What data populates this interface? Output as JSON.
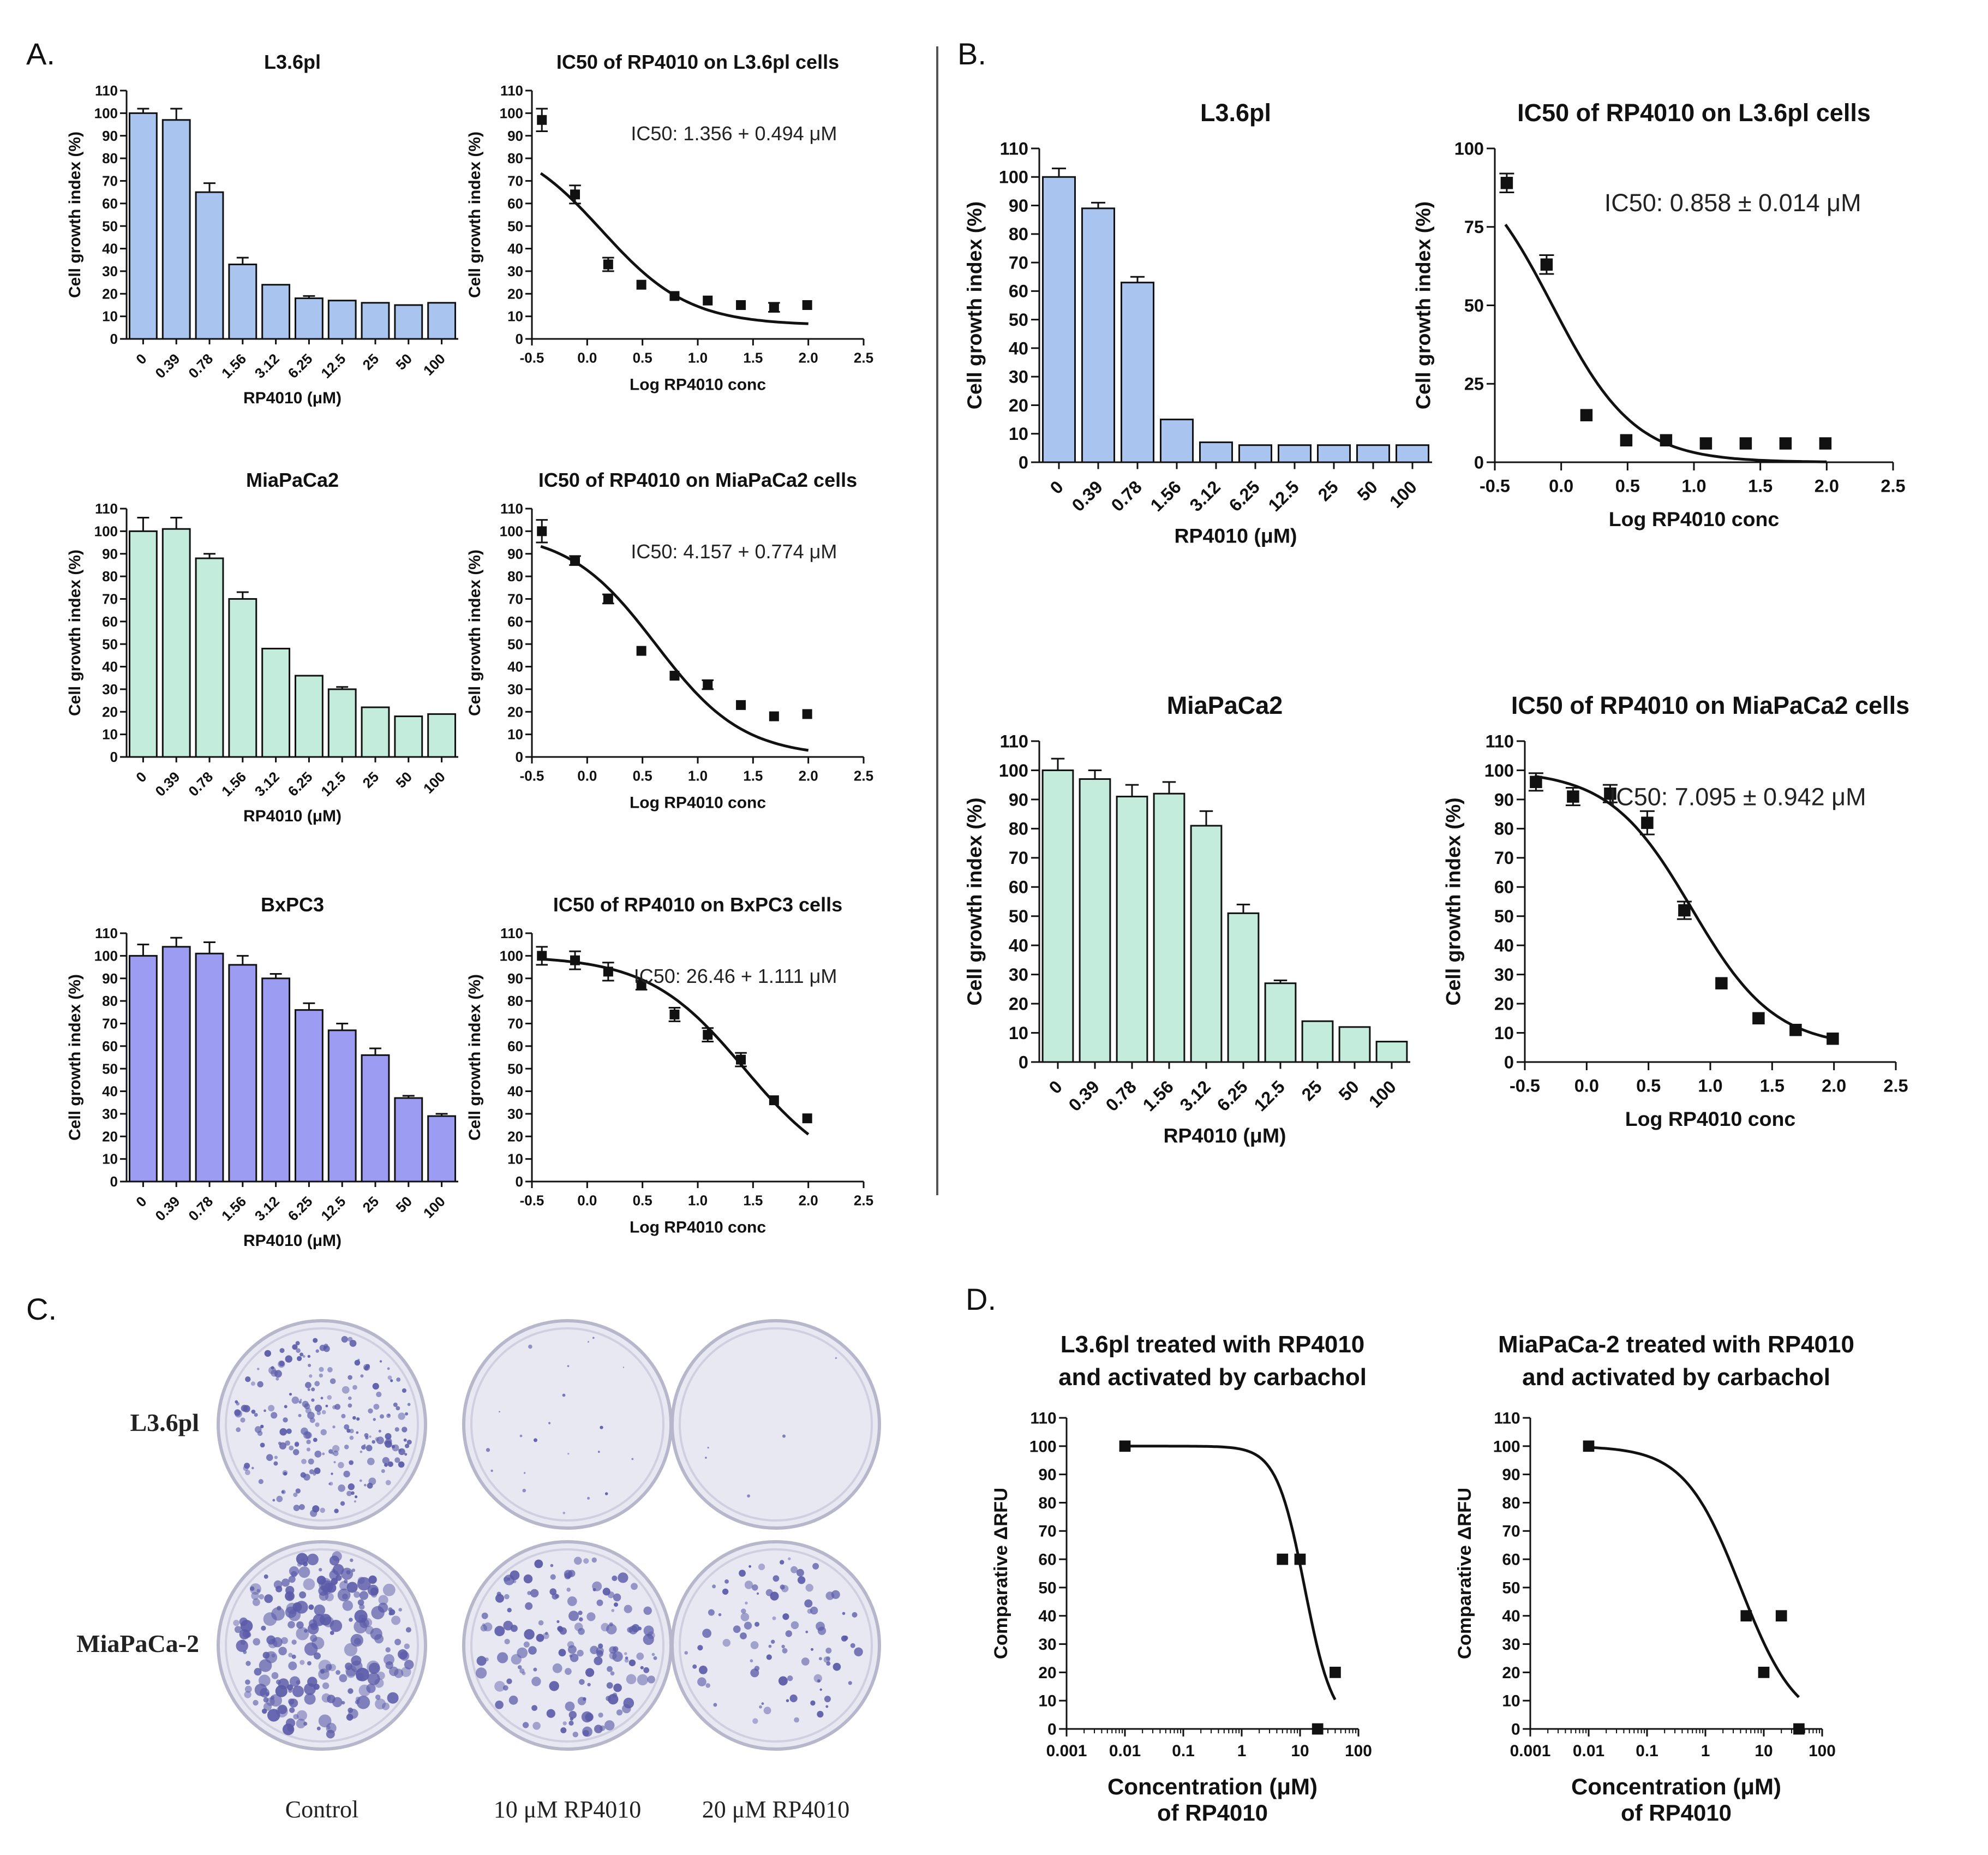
{
  "colors": {
    "blue": "#a9c4ef",
    "mint": "#c4ecdd",
    "purple": "#9d9cf3",
    "dish_stain": "#5a5aa8",
    "dish_bg": "#e8e8f2"
  },
  "panels": {
    "A": "A.",
    "B": "B.",
    "C": "C.",
    "D": "D."
  },
  "chart_data": [
    {
      "id": "A1",
      "panel": "A",
      "type": "bar",
      "title": "L3.6pl",
      "ylabel": "Cell growth index (%)",
      "xlabel": "RP4010 (μM)",
      "categories": [
        "0",
        "0.39",
        "0.78",
        "1.56",
        "3.12",
        "6.25",
        "12.5",
        "25",
        "50",
        "100"
      ],
      "values": [
        100,
        97,
        65,
        33,
        24,
        18,
        17,
        16,
        15,
        16
      ],
      "errors": [
        2,
        5,
        4,
        3,
        0,
        1,
        0,
        0,
        0,
        0
      ],
      "ylim": [
        0,
        110
      ],
      "yticks": [
        "0",
        "10",
        "20",
        "30",
        "40",
        "50",
        "60",
        "70",
        "80",
        "90",
        "100",
        "110"
      ],
      "color": "blue"
    },
    {
      "id": "A2",
      "panel": "A",
      "type": "scatter",
      "title": "IC50 of RP4010 on L3.6pl cells",
      "ylabel": "Cell growth index (%)",
      "xlabel": "Log RP4010 conc",
      "annotation": "IC50: 1.356 + 0.494 μM",
      "ic50": 1.356,
      "top": 90,
      "bottom": 6,
      "hill": 1.1,
      "x": [
        -0.41,
        -0.11,
        0.19,
        0.49,
        0.79,
        1.09,
        1.39,
        1.69,
        1.99
      ],
      "y": [
        97,
        64,
        33,
        24,
        19,
        17,
        15,
        14,
        15
      ],
      "errors": [
        5,
        4,
        3,
        0,
        0,
        0,
        0,
        2,
        0
      ],
      "xlim": [
        -0.5,
        2.5
      ],
      "ylim": [
        0,
        110
      ],
      "xticks": [
        "-0.5",
        "0.0",
        "0.5",
        "1.0",
        "1.5",
        "2.0",
        "2.5"
      ],
      "yticks": [
        "0",
        "10",
        "20",
        "30",
        "40",
        "50",
        "60",
        "70",
        "80",
        "90",
        "100",
        "110"
      ]
    },
    {
      "id": "A3",
      "panel": "A",
      "type": "bar",
      "title": "MiaPaCa2",
      "ylabel": "Cell growth index (%)",
      "xlabel": "RP4010 (μM)",
      "categories": [
        "0",
        "0.39",
        "0.78",
        "1.56",
        "3.12",
        "6.25",
        "12.5",
        "25",
        "50",
        "100"
      ],
      "values": [
        100,
        101,
        88,
        70,
        48,
        36,
        30,
        22,
        18,
        19
      ],
      "errors": [
        6,
        5,
        2,
        3,
        0,
        0,
        1,
        0,
        0,
        0
      ],
      "ylim": [
        0,
        110
      ],
      "yticks": [
        "0",
        "10",
        "20",
        "30",
        "40",
        "50",
        "60",
        "70",
        "80",
        "90",
        "100",
        "110"
      ],
      "color": "mint"
    },
    {
      "id": "A4",
      "panel": "A",
      "type": "scatter",
      "title": "IC50 of RP4010 on MiaPaCa2 cells",
      "ylabel": "Cell growth index (%)",
      "xlabel": "Log RP4010 conc",
      "annotation": "IC50: 4.157 + 0.774 μM",
      "ic50": 4.157,
      "top": 100,
      "bottom": 0,
      "hill": 1.1,
      "x": [
        -0.41,
        -0.11,
        0.19,
        0.49,
        0.79,
        1.09,
        1.39,
        1.69,
        1.99
      ],
      "y": [
        100,
        87,
        70,
        47,
        36,
        32,
        23,
        18,
        19
      ],
      "errors": [
        5,
        2,
        2,
        0,
        0,
        2,
        0,
        0,
        0
      ],
      "xlim": [
        -0.5,
        2.5
      ],
      "ylim": [
        0,
        110
      ],
      "xticks": [
        "-0.5",
        "0.0",
        "0.5",
        "1.0",
        "1.5",
        "2.0",
        "2.5"
      ],
      "yticks": [
        "0",
        "10",
        "20",
        "30",
        "40",
        "50",
        "60",
        "70",
        "80",
        "90",
        "100",
        "110"
      ]
    },
    {
      "id": "A5",
      "panel": "A",
      "type": "bar",
      "title": "BxPC3",
      "ylabel": "Cell growth index (%)",
      "xlabel": "RP4010 (μM)",
      "categories": [
        "0",
        "0.39",
        "0.78",
        "1.56",
        "3.12",
        "6.25",
        "12.5",
        "25",
        "50",
        "100"
      ],
      "values": [
        100,
        104,
        101,
        96,
        90,
        76,
        67,
        56,
        37,
        29
      ],
      "errors": [
        5,
        4,
        5,
        4,
        2,
        3,
        3,
        3,
        1,
        1
      ],
      "ylim": [
        0,
        110
      ],
      "yticks": [
        "0",
        "10",
        "20",
        "30",
        "40",
        "50",
        "60",
        "70",
        "80",
        "90",
        "100",
        "110"
      ],
      "color": "purple"
    },
    {
      "id": "A6",
      "panel": "A",
      "type": "scatter",
      "title": "IC50 of RP4010 on BxPC3 cells",
      "ylabel": "Cell growth index (%)",
      "xlabel": "Log RP4010 conc",
      "annotation": "IC50: 26.46 + 1.111 μM",
      "ic50": 26.46,
      "top": 100,
      "bottom": 0,
      "hill": 1.0,
      "x": [
        -0.41,
        -0.11,
        0.19,
        0.49,
        0.79,
        1.09,
        1.39,
        1.69,
        1.99
      ],
      "y": [
        100,
        98,
        93,
        87,
        74,
        65,
        54,
        36,
        28
      ],
      "errors": [
        4,
        4,
        4,
        2,
        3,
        3,
        3,
        0,
        0
      ],
      "xlim": [
        -0.5,
        2.5
      ],
      "ylim": [
        0,
        110
      ],
      "xticks": [
        "-0.5",
        "0.0",
        "0.5",
        "1.0",
        "1.5",
        "2.0",
        "2.5"
      ],
      "yticks": [
        "0",
        "10",
        "20",
        "30",
        "40",
        "50",
        "60",
        "70",
        "80",
        "90",
        "100",
        "110"
      ]
    },
    {
      "id": "B1",
      "panel": "B",
      "type": "bar",
      "title": "L3.6pl",
      "ylabel": "Cell growth index (%)",
      "xlabel": "RP4010 (μM)",
      "categories": [
        "0",
        "0.39",
        "0.78",
        "1.56",
        "3.12",
        "6.25",
        "12.5",
        "25",
        "50",
        "100"
      ],
      "values": [
        100,
        89,
        63,
        15,
        7,
        6,
        6,
        6,
        6,
        6
      ],
      "errors": [
        3,
        2,
        2,
        0,
        0,
        0,
        0,
        0,
        0,
        0
      ],
      "ylim": [
        0,
        110
      ],
      "yticks": [
        "0",
        "10",
        "20",
        "30",
        "40",
        "50",
        "60",
        "70",
        "80",
        "90",
        "100",
        "110"
      ],
      "color": "blue"
    },
    {
      "id": "B2",
      "panel": "B",
      "type": "scatter",
      "title": "IC50 of RP4010 on L3.6pl cells",
      "ylabel": "Cell growth index (%)",
      "xlabel": "Log RP4010 conc",
      "annotation": "IC50: 0.858 ± 0.014 μM",
      "ic50": 0.858,
      "top": 100,
      "bottom": 0,
      "hill": 1.4,
      "x": [
        -0.41,
        -0.11,
        0.19,
        0.49,
        0.79,
        1.09,
        1.39,
        1.69,
        1.99
      ],
      "y": [
        89,
        63,
        15,
        7,
        7,
        6,
        6,
        6,
        6
      ],
      "errors": [
        3,
        3,
        0,
        0,
        0,
        0,
        0,
        0,
        0
      ],
      "xlim": [
        -0.5,
        2.5
      ],
      "ylim": [
        0,
        100
      ],
      "xticks": [
        "-0.5",
        "0.0",
        "0.5",
        "1.0",
        "1.5",
        "2.0",
        "2.5"
      ],
      "yticks": [
        "0",
        "25",
        "50",
        "75",
        "100"
      ]
    },
    {
      "id": "B3",
      "panel": "B",
      "type": "bar",
      "title": "MiaPaCa2",
      "ylabel": "Cell growth index (%)",
      "xlabel": "RP4010 (μM)",
      "categories": [
        "0",
        "0.39",
        "0.78",
        "1.56",
        "3.12",
        "6.25",
        "12.5",
        "25",
        "50",
        "100"
      ],
      "values": [
        100,
        97,
        91,
        92,
        81,
        51,
        27,
        14,
        12,
        7
      ],
      "errors": [
        4,
        3,
        4,
        4,
        5,
        3,
        1,
        0,
        0,
        0
      ],
      "ylim": [
        0,
        110
      ],
      "yticks": [
        "0",
        "10",
        "20",
        "30",
        "40",
        "50",
        "60",
        "70",
        "80",
        "90",
        "100",
        "110"
      ],
      "color": "mint"
    },
    {
      "id": "B4",
      "panel": "B",
      "type": "scatter",
      "title": "IC50 of RP4010 on MiaPaCa2 cells",
      "ylabel": "Cell growth index (%)",
      "xlabel": "Log RP4010 conc",
      "annotation": "IC50: 7.095 ± 0.942 μM",
      "ic50": 7.095,
      "top": 100,
      "bottom": 5,
      "hill": 1.3,
      "x": [
        -0.41,
        -0.11,
        0.19,
        0.49,
        0.79,
        1.09,
        1.39,
        1.69,
        1.99
      ],
      "y": [
        96,
        91,
        92,
        82,
        52,
        27,
        15,
        11,
        8
      ],
      "errors": [
        3,
        3,
        3,
        4,
        3,
        0,
        0,
        0,
        0
      ],
      "xlim": [
        -0.5,
        2.5
      ],
      "ylim": [
        0,
        110
      ],
      "xticks": [
        "-0.5",
        "0.0",
        "0.5",
        "1.0",
        "1.5",
        "2.0",
        "2.5"
      ],
      "yticks": [
        "0",
        "10",
        "20",
        "30",
        "40",
        "50",
        "60",
        "70",
        "80",
        "90",
        "100",
        "110"
      ]
    },
    {
      "id": "D1",
      "panel": "D",
      "type": "scatter",
      "title": [
        "L3.6pl treated with RP4010",
        "and activated by carbachol"
      ],
      "ylabel": "Comparative ΔRFU",
      "xlabel": [
        "Concentration (μM)",
        "of RP4010"
      ],
      "logx": true,
      "ic50": 12,
      "top": 100,
      "bottom": 0,
      "hill": 1.8,
      "curve_from": -2,
      "curve_to": 1.6,
      "x": [
        0.01,
        5,
        10,
        20,
        40
      ],
      "y": [
        100,
        60,
        60,
        0,
        20
      ],
      "errors": [
        0,
        0,
        0,
        0,
        0
      ],
      "xlim": [
        0.001,
        100
      ],
      "ylim": [
        0,
        110
      ],
      "xticks": [
        "0.001",
        "0.01",
        "0.1",
        "1",
        "10",
        "100"
      ],
      "yticks": [
        "0",
        "10",
        "20",
        "30",
        "40",
        "50",
        "60",
        "70",
        "80",
        "90",
        "100",
        "110"
      ]
    },
    {
      "id": "D2",
      "panel": "D",
      "type": "scatter",
      "title": [
        "MiaPaCa-2 treated with RP4010",
        "and activated by carbachol"
      ],
      "ylabel": "Comparative ΔRFU",
      "xlabel": [
        "Concentration (μM)",
        "of RP4010"
      ],
      "logx": true,
      "ic50": 4,
      "top": 100,
      "bottom": 0,
      "hill": 0.9,
      "curve_from": -2,
      "curve_to": 1.6,
      "x": [
        0.01,
        5,
        10,
        20,
        40
      ],
      "y": [
        100,
        40,
        20,
        40,
        0
      ],
      "errors": [
        0,
        0,
        0,
        0,
        0
      ],
      "xlim": [
        0.001,
        100
      ],
      "ylim": [
        0,
        110
      ],
      "xticks": [
        "0.001",
        "0.01",
        "0.1",
        "1",
        "10",
        "100"
      ],
      "yticks": [
        "0",
        "10",
        "20",
        "30",
        "40",
        "50",
        "60",
        "70",
        "80",
        "90",
        "100",
        "110"
      ]
    }
  ],
  "colony": {
    "rows": [
      "L3.6pl",
      "MiaPaCa-2"
    ],
    "columns": [
      "Control",
      "10  μM RP4010",
      "20  μM RP4010"
    ],
    "density": [
      [
        0.85,
        0.08,
        0.02
      ],
      [
        0.9,
        0.6,
        0.35
      ]
    ]
  }
}
